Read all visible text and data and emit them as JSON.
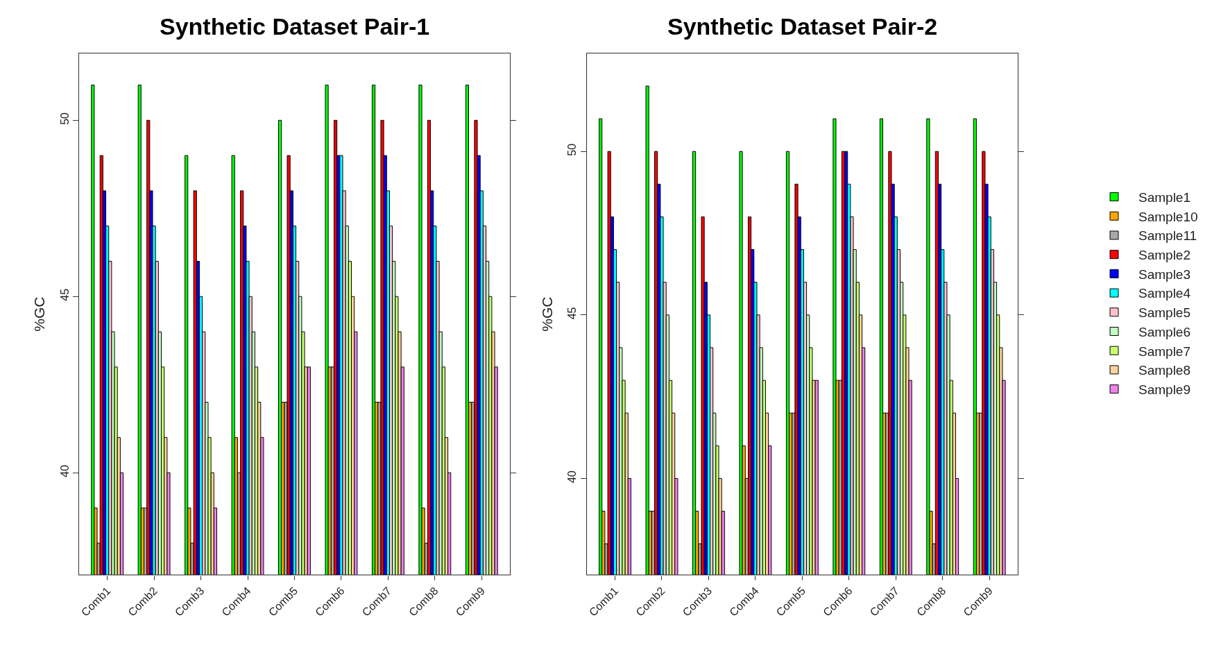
{
  "chart_data": [
    {
      "type": "bar",
      "title": "Synthetic Dataset Pair-1",
      "ylabel": "%GC",
      "categories": [
        "Comb1",
        "Comb2",
        "Comb3",
        "Comb4",
        "Comb5",
        "Comb6",
        "Comb7",
        "Comb8",
        "Comb9"
      ],
      "ylim": [
        37.1,
        51.9
      ],
      "yticks": [
        40,
        45,
        50
      ],
      "legend": "right",
      "series": [
        {
          "name": "Sample1",
          "color": "#00ff00",
          "values": [
            51,
            51,
            49,
            49,
            50,
            51,
            51,
            51,
            51
          ]
        },
        {
          "name": "Sample10",
          "color": "#ffa500",
          "values": [
            39,
            39,
            39,
            41,
            42,
            43,
            42,
            39,
            42
          ]
        },
        {
          "name": "Sample11",
          "color": "#a9a9a9",
          "values": [
            38,
            39,
            38,
            40,
            42,
            43,
            42,
            38,
            42
          ]
        },
        {
          "name": "Sample2",
          "color": "#ff0000",
          "values": [
            49,
            50,
            48,
            48,
            49,
            50,
            50,
            50,
            50
          ]
        },
        {
          "name": "Sample3",
          "color": "#0000ff",
          "values": [
            48,
            48,
            46,
            47,
            48,
            49,
            49,
            48,
            49
          ]
        },
        {
          "name": "Sample4",
          "color": "#00ffff",
          "values": [
            47,
            47,
            45,
            46,
            47,
            49,
            48,
            47,
            48
          ]
        },
        {
          "name": "Sample5",
          "color": "#ffc0cb",
          "values": [
            46,
            46,
            44,
            45,
            46,
            48,
            47,
            46,
            47
          ]
        },
        {
          "name": "Sample6",
          "color": "#c1ffc1",
          "values": [
            44,
            44,
            42,
            44,
            45,
            47,
            46,
            44,
            46
          ]
        },
        {
          "name": "Sample7",
          "color": "#caff70",
          "values": [
            43,
            43,
            41,
            43,
            44,
            46,
            45,
            43,
            45
          ]
        },
        {
          "name": "Sample8",
          "color": "#ffd39b",
          "values": [
            41,
            41,
            40,
            42,
            43,
            45,
            44,
            41,
            44
          ]
        },
        {
          "name": "Sample9",
          "color": "#ee82ee",
          "values": [
            40,
            40,
            39,
            41,
            43,
            44,
            43,
            40,
            43
          ]
        }
      ]
    },
    {
      "type": "bar",
      "title": "Synthetic Dataset Pair-2",
      "ylabel": "%GC",
      "categories": [
        "Comb1",
        "Comb2",
        "Comb3",
        "Comb4",
        "Comb5",
        "Comb6",
        "Comb7",
        "Comb8",
        "Comb9"
      ],
      "ylim": [
        37.05,
        53
      ],
      "yticks": [
        40,
        45,
        50
      ],
      "series": [
        {
          "color": "#00ff00",
          "values": [
            51,
            52,
            50,
            50,
            50,
            51,
            51,
            51,
            51
          ]
        },
        {
          "color": "#ffa500",
          "values": [
            39,
            39,
            39,
            41,
            42,
            43,
            42,
            39,
            42
          ]
        },
        {
          "color": "#a9a9a9",
          "values": [
            38,
            39,
            38,
            40,
            42,
            43,
            42,
            38,
            42
          ]
        },
        {
          "color": "#ff0000",
          "values": [
            50,
            50,
            48,
            48,
            49,
            50,
            50,
            50,
            50
          ]
        },
        {
          "color": "#0000ff",
          "values": [
            48,
            49,
            46,
            47,
            48,
            50,
            49,
            49,
            49
          ]
        },
        {
          "color": "#00ffff",
          "values": [
            47,
            48,
            45,
            46,
            47,
            49,
            48,
            47,
            48
          ]
        },
        {
          "color": "#ffc0cb",
          "values": [
            46,
            46,
            44,
            45,
            46,
            48,
            47,
            46,
            47
          ]
        },
        {
          "color": "#c1ffc1",
          "values": [
            44,
            45,
            42,
            44,
            45,
            47,
            46,
            45,
            46
          ]
        },
        {
          "color": "#caff70",
          "values": [
            43,
            43,
            41,
            43,
            44,
            46,
            45,
            43,
            45
          ]
        },
        {
          "color": "#ffd39b",
          "values": [
            42,
            42,
            40,
            42,
            43,
            45,
            44,
            42,
            44
          ]
        },
        {
          "color": "#ee82ee",
          "values": [
            40,
            40,
            39,
            41,
            43,
            44,
            43,
            40,
            43
          ]
        }
      ]
    }
  ]
}
